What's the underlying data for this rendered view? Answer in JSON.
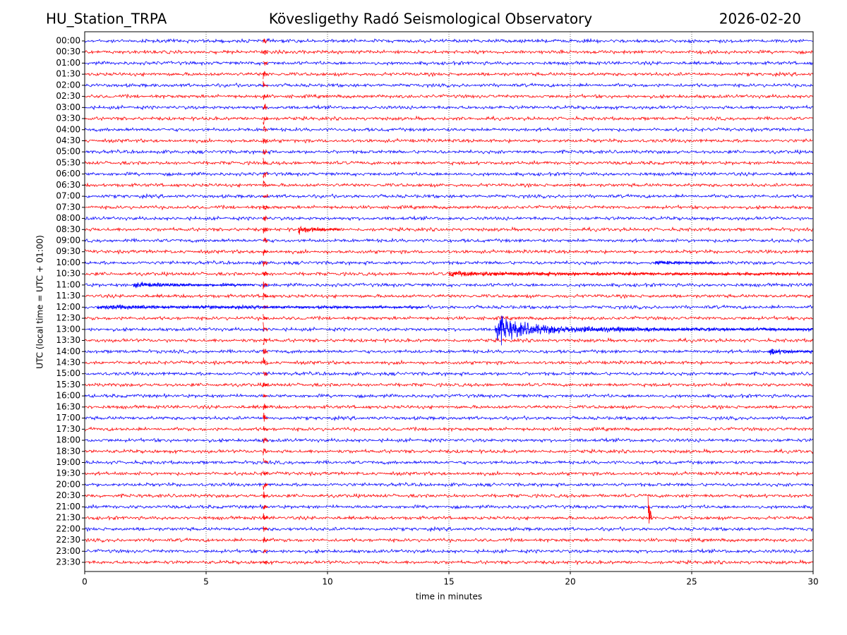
{
  "chart_data": {
    "type": "helicorder",
    "title_left": "HU_Station_TRPA",
    "title": "Kövesligethy Radó Seismological Observatory",
    "title_right": "2026-02-20",
    "xlabel": "time in minutes",
    "ylabel": "UTC (local time = UTC + 01:00)",
    "categories": [
      "00:00",
      "00:30",
      "01:00",
      "01:30",
      "02:00",
      "02:30",
      "03:00",
      "03:30",
      "04:00",
      "04:30",
      "05:00",
      "05:30",
      "06:00",
      "06:30",
      "07:00",
      "07:30",
      "08:00",
      "08:30",
      "09:00",
      "09:30",
      "10:00",
      "10:30",
      "11:00",
      "11:30",
      "12:00",
      "12:30",
      "13:00",
      "13:30",
      "14:00",
      "14:30",
      "15:00",
      "15:30",
      "16:00",
      "16:30",
      "17:00",
      "17:30",
      "18:00",
      "18:30",
      "19:00",
      "19:30",
      "20:00",
      "20:30",
      "21:00",
      "21:30",
      "22:00",
      "22:30",
      "23:00",
      "23:30"
    ],
    "colors": [
      "#0000ff",
      "#ff0000"
    ],
    "xlim": [
      0,
      30
    ],
    "xticks": [
      0,
      5,
      10,
      15,
      20,
      25,
      30
    ],
    "grid": true,
    "noise": 0.1,
    "events": [
      {
        "rows": [
          0,
          47
        ],
        "x": [
          7.35,
          7.55
        ],
        "amplitude": 0.6,
        "color": "#ff0000"
      },
      {
        "rows": [
          17,
          17
        ],
        "x": [
          8.8,
          10.5
        ],
        "amplitude": 0.5
      },
      {
        "rows": [
          20,
          20
        ],
        "x": [
          23.5,
          26
        ],
        "amplitude": 0.25
      },
      {
        "rows": [
          21,
          21
        ],
        "x": [
          15,
          30
        ],
        "amplitude": 0.3
      },
      {
        "rows": [
          22,
          22
        ],
        "x": [
          2,
          7
        ],
        "amplitude": 0.3
      },
      {
        "rows": [
          24,
          24
        ],
        "x": [
          0.5,
          14
        ],
        "amplitude": 0.25
      },
      {
        "rows": [
          26,
          26
        ],
        "x": [
          16.9,
          19.5
        ],
        "amplitude": 1.6
      },
      {
        "rows": [
          26,
          26
        ],
        "x": [
          19.5,
          30
        ],
        "amplitude": 0.4
      },
      {
        "rows": [
          28,
          28
        ],
        "x": [
          28.2,
          30
        ],
        "amplitude": 0.4
      },
      {
        "rows": [
          43,
          43
        ],
        "x": [
          23.2,
          23.35
        ],
        "amplitude": 2.8
      }
    ]
  }
}
